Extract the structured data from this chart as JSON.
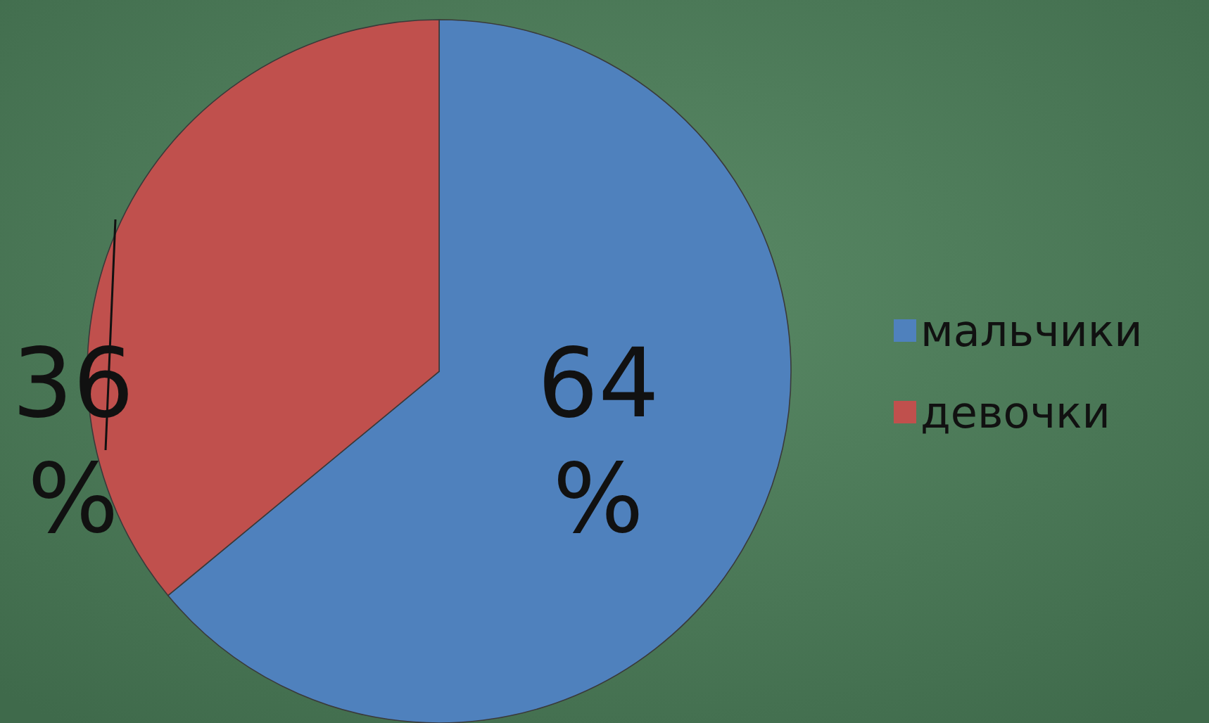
{
  "chart_data": {
    "type": "pie",
    "categories": [
      "мальчики",
      "девочки"
    ],
    "values": [
      64,
      36
    ],
    "colors": [
      "#4f81bd",
      "#c0504d"
    ],
    "value_labels": [
      "64 %",
      "36 %"
    ],
    "legend": "right"
  }
}
